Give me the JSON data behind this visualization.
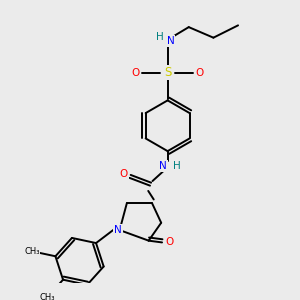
{
  "background_color": "#ebebeb",
  "atom_colors": {
    "C": "#000000",
    "N": "#0000ff",
    "O": "#ff0000",
    "S": "#cccc00",
    "H": "#008080"
  }
}
